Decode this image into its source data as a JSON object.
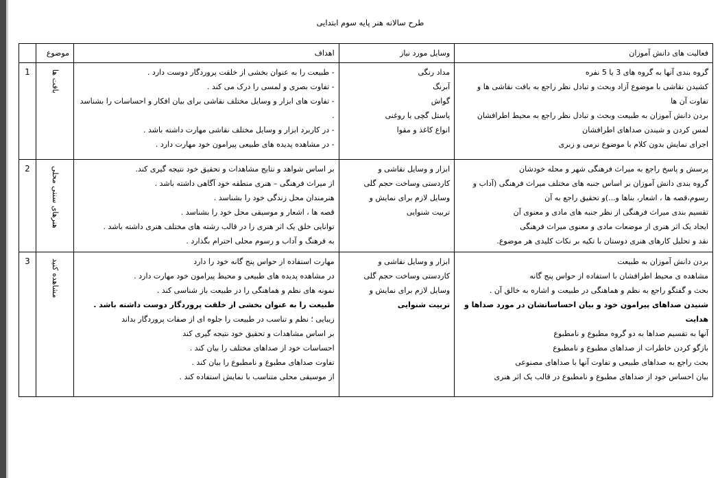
{
  "title": "طرح سالانه هنر پایه سوم ابتدایی",
  "headers": {
    "activities": "فعالیت های دانش آموزان",
    "tools": "وسایل مورد نیاز",
    "goals": "اهداف",
    "topic": "موضوع",
    "number": ""
  },
  "rows": [
    {
      "number": "1",
      "topic": "بافت ها",
      "activities": [
        "گروه بندی آنها به گروه های 3 یا 5 نفره",
        "کشیدن نقاشی با موضوع آزاد وبحث و تبادل نظر راجع به بافت نقاشی ها و تفاوت آن ها",
        "بردن دانش آموزان به طبیعت وبحث و تبادل نظر راجع به محیط اطرافشان",
        "لمس کردن و شیندن صداهای اطرافشان",
        "اجرای نمایش بدون کلام با موضوع نرمی و زبری"
      ],
      "tools": [
        "مداد رنگی",
        "آبرنگ",
        "گواش",
        "پاستل گچی یا روغنی",
        "انواع کاغذ و مقوا"
      ],
      "goals": [
        "- طبیعت را به عنوان بخشی از خلقت پروردگار دوست دارد .",
        "- تفاوت بصری و لمسی را درک می کند .",
        "- تفاوت های ابزار و وسایل مختلف نقاشی برای بیان افکار و احساسات را بشناسد .",
        "- در کاربرد ابزار و وسایل مختلف نقاشی مهارت داشته باشد .",
        "- در مشاهده پدیده های طبیعی پیرامون خود مهارت دارد ."
      ]
    },
    {
      "number": "2",
      "topic": "هنرهای سنتی محلی",
      "activities": [
        "پرسش و پاسخ راجع به میراث فرهنگی شهر و محله خودشان",
        "گروه بندی دانش آموزان بر اساس جنبه های مختلف میراث فرهنگی (آداب و رسوم،قصه ها ، اشعار، بناها و...)و تحقیق راجع به آن",
        "تقسیم بندی میراث فرهنگی از نظر جنبه های مادی و معنوی آن",
        "ایجاد یک اثر هنری از موضعات مادی و معنوی میراث فرهنگی",
        "نقد و تحلیل کارهای هنری دوستان با تکیه بر نکات کلیدی هر موضوع."
      ],
      "tools": [
        "ابزار و وسایل نقاشی و",
        "کاردستی وساخت حجم گلی",
        "وسایل لازم برای نمایش و",
        "تربیت شنوایی"
      ],
      "goals": [
        "بر اساس شواهد و نتایج مشاهدات و تحقیق خود نتیجه گیری کند.",
        "از میراث فرهنگی – هنری منطقه خود آگاهی داشته باشد .",
        "هنرمندان محل زندگی خود را بشناسد .",
        "قصه ها ، اشعار و موسیقی محل خود را بشناسد .",
        "توانایی خلق یک اثر هنری را در قالب رشته های مختلف هنری داشته باشد .",
        "به فرهنگ و آداب و رسوم محلی احترام بگذارد ."
      ]
    },
    {
      "number": "3",
      "topic": "مشاهده کنید",
      "activities": [
        "بردن دانش آموزان به طبیعت",
        "مشاهده ی محیط اطرافشان با استفاده از حواس پنج گانه",
        "بحث و گفتگو راجع به نظم و هماهنگی در طبیعت و اشاره به خالق آن .",
        "شنیدن صداهای پیرامون خود و بیان احساساتشان در مورد صداها و هدایت",
        "آنها به تقسیم صداها به دو گروه مطبوع و نامطبوع",
        "بازگو کردن خاطرات از صداهای مطبوع و نامطبوع",
        "بحث راجع به صداهای طبیعی و تفاوت آنها با صداهای مصنوعی",
        "بیان احساس خود از صداهای مطبوع و نامطبوع در قالب یک اثر هنری"
      ],
      "tools": [
        "ابزار و وسایل نقاشی و",
        "کاردستی وساخت حجم گلی",
        "وسایل لازم برای نمایش و",
        "تربیت شنوایی"
      ],
      "goals": [
        "مهارت استفاده از حواس پنج گانه خود را دارد",
        "در مشاهده پدیده های طبیعی و محیط پیرامون خود مهارت دارد .",
        "نمونه های نظم و هماهنگی را در طبیعت باز شناسی کند .",
        "طبیعت را به عنوان بخشی از خلقت پروردگار دوست داشته باشد .",
        "زیبایی ؛ نظم و تناسب در طبیعت را جلوه ای از صفات پروردگار بداند",
        "بر اساس مشاهدات و تحقیق خود نتیجه گیری کند",
        "احساسات خود از صداهای مختلف را بیان کند .",
        "تفاوت صداهای مطبوع و نامطبوع را بیان کند .",
        "از موسیقی محلی متناسب با نمایش استفاده کند ."
      ]
    }
  ]
}
